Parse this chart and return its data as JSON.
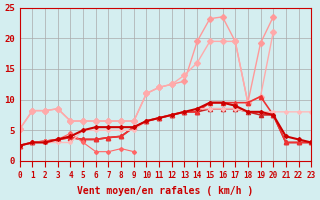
{
  "title": "",
  "xlabel": "Vent moyen/en rafales ( km/h )",
  "ylabel": "",
  "background_color": "#d4eef0",
  "grid_color": "#aaaaaa",
  "xlim": [
    0,
    23
  ],
  "ylim": [
    0,
    25
  ],
  "yticks": [
    0,
    5,
    10,
    15,
    20,
    25
  ],
  "xticks": [
    0,
    1,
    2,
    3,
    4,
    5,
    6,
    7,
    8,
    9,
    10,
    11,
    12,
    13,
    14,
    15,
    16,
    17,
    18,
    19,
    20,
    21,
    22,
    23
  ],
  "series": [
    {
      "x": [
        0,
        1,
        2,
        3,
        4,
        5,
        6,
        7,
        8,
        9,
        10,
        11,
        12,
        13,
        14,
        15,
        16,
        17,
        18,
        19,
        20,
        21,
        22,
        23
      ],
      "y": [
        5.2,
        8.2,
        8.2,
        8.5,
        6.5,
        6.5,
        6.5,
        6.5,
        6.5,
        6.5,
        11.0,
        12.0,
        12.5,
        13.0,
        19.5,
        23.2,
        23.5,
        19.5,
        9.5,
        19.2,
        23.5,
        null,
        null,
        null
      ],
      "color": "#ff9999",
      "lw": 1.0,
      "marker": "D",
      "ms": 3
    },
    {
      "x": [
        0,
        1,
        2,
        3,
        4,
        5,
        6,
        7,
        8,
        9,
        10,
        11,
        12,
        13,
        14,
        15,
        16,
        17,
        18,
        19,
        20,
        21,
        22,
        23
      ],
      "y": [
        5.2,
        8.2,
        8.2,
        8.5,
        6.5,
        6.5,
        6.5,
        6.5,
        6.5,
        6.5,
        11.0,
        12.0,
        12.5,
        14.0,
        16.0,
        19.5,
        19.5,
        19.5,
        9.5,
        10.5,
        21.0,
        null,
        null,
        null
      ],
      "color": "#ffaaaa",
      "lw": 1.0,
      "marker": "D",
      "ms": 3
    },
    {
      "x": [
        0,
        1,
        2,
        3,
        4,
        5,
        6,
        7,
        8,
        9,
        10,
        11,
        12,
        13,
        14,
        15,
        16,
        17,
        18,
        19,
        20,
        21,
        22,
        23
      ],
      "y": [
        2.5,
        3.0,
        3.2,
        3.5,
        3.8,
        3.5,
        3.5,
        3.8,
        4.0,
        5.5,
        6.5,
        7.0,
        7.5,
        8.0,
        8.0,
        8.5,
        8.5,
        8.5,
        8.0,
        7.5,
        7.5,
        3.0,
        3.0,
        3.0
      ],
      "color": "#cc2222",
      "lw": 1.2,
      "marker": "^",
      "ms": 3
    },
    {
      "x": [
        0,
        1,
        2,
        3,
        4,
        5,
        6,
        7,
        8,
        9,
        10,
        11,
        12,
        13,
        14,
        15,
        16,
        17,
        18,
        19,
        20,
        21,
        22,
        23
      ],
      "y": [
        2.5,
        3.0,
        3.2,
        3.5,
        3.8,
        3.5,
        3.5,
        3.8,
        4.0,
        5.5,
        6.5,
        7.0,
        7.5,
        8.0,
        8.0,
        9.5,
        9.5,
        9.5,
        9.5,
        10.5,
        7.5,
        3.0,
        3.0,
        3.0
      ],
      "color": "#ee3333",
      "lw": 1.2,
      "marker": "^",
      "ms": 3
    },
    {
      "x": [
        0,
        1,
        2,
        3,
        4,
        5,
        6,
        7,
        8,
        9,
        10,
        11,
        12,
        13,
        14,
        15,
        16,
        17,
        18,
        19,
        20,
        21,
        22,
        23
      ],
      "y": [
        2.5,
        3.0,
        3.2,
        3.5,
        4.5,
        3.0,
        1.5,
        1.5,
        2.0,
        1.5,
        null,
        null,
        null,
        null,
        null,
        null,
        null,
        null,
        null,
        null,
        null,
        null,
        null,
        null
      ],
      "color": "#ff6666",
      "lw": 0.8,
      "marker": "D",
      "ms": 2
    },
    {
      "x": [
        0,
        1,
        2,
        3,
        4,
        5,
        6,
        7,
        8,
        9,
        10,
        11,
        12,
        13,
        14,
        15,
        16,
        17,
        18,
        19,
        20,
        21,
        22,
        23
      ],
      "y": [
        2.5,
        3.0,
        3.0,
        3.0,
        3.0,
        5.0,
        5.0,
        5.0,
        5.0,
        5.0,
        6.5,
        7.0,
        7.5,
        8.0,
        8.5,
        8.5,
        8.5,
        8.5,
        8.0,
        8.0,
        8.0,
        8.0,
        8.0,
        8.0
      ],
      "color": "#ffbbbb",
      "lw": 1.0,
      "marker": "D",
      "ms": 2
    },
    {
      "x": [
        0,
        1,
        2,
        3,
        4,
        5,
        6,
        7,
        8,
        9,
        10,
        11,
        12,
        13,
        14,
        15,
        16,
        17,
        18,
        19,
        20,
        21,
        22,
        23
      ],
      "y": [
        2.5,
        3.0,
        3.0,
        3.5,
        4.0,
        5.0,
        5.5,
        5.5,
        5.5,
        5.5,
        6.5,
        7.0,
        7.5,
        8.0,
        8.5,
        9.5,
        9.5,
        9.0,
        8.0,
        8.0,
        7.5,
        4.0,
        3.5,
        3.0
      ],
      "color": "#cc0000",
      "lw": 1.5,
      "marker": "D",
      "ms": 2
    }
  ]
}
